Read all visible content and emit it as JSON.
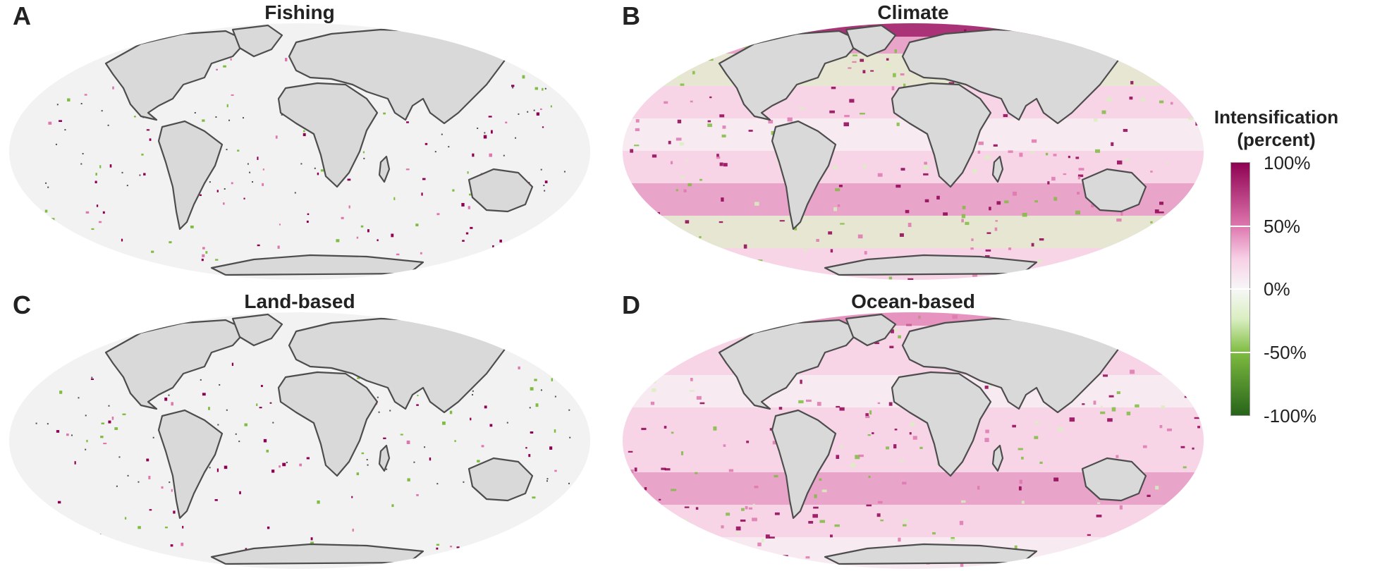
{
  "panels": [
    {
      "letter": "A",
      "title": "Fishing",
      "palette": "sparse"
    },
    {
      "letter": "B",
      "title": "Climate",
      "palette": "dense"
    },
    {
      "letter": "C",
      "title": "Land-based",
      "palette": "sparse"
    },
    {
      "letter": "D",
      "title": "Ocean-based",
      "palette": "dense"
    }
  ],
  "legend": {
    "title_line1": "Intensification",
    "title_line2": "(percent)",
    "ticks": [
      "100%",
      "50%",
      "0%",
      "-50%",
      "-100%"
    ]
  },
  "colors": {
    "ocean_background": "#f2f2f2",
    "land": "#d9d9d9",
    "coast": "#4d4d4d",
    "pos_strong": "#8e0152",
    "pos_mid": "#de77ae",
    "pos_light": "#f7d0e6",
    "neutral": "#f7f7f7",
    "neg_light": "#d9eec0",
    "neg_mid": "#7fbc41",
    "neg_strong": "#276419"
  }
}
